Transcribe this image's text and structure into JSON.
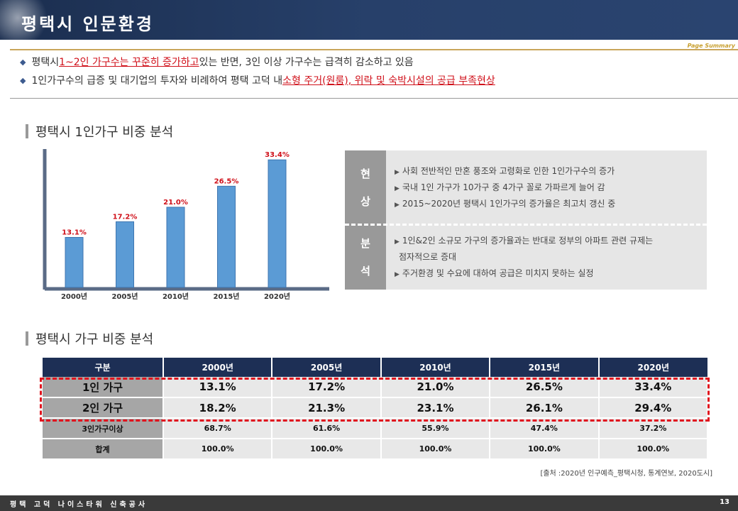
{
  "header": {
    "title": "평택시 인문환경",
    "page_summary": "Page Summary"
  },
  "summary": {
    "line1": {
      "pre": "평택시 ",
      "highlight": "1~2인 가구수는 꾸준히 증가하고",
      "post": " 있는 반면, 3인 이상 가구수는 급격히 감소하고 있음"
    },
    "line2": {
      "pre": "1인가구수의 급증 및 대기업의 투자와 비례하여 평택 고덕 내 ",
      "highlight": "소형 주거(원룸), 위락 및 숙박시설의 공급 부족현상",
      "post": ""
    }
  },
  "section1_title": "평택시 1인가구 비중 분석",
  "chart_data": {
    "type": "bar",
    "categories": [
      "2000년",
      "2005년",
      "2010년",
      "2015년",
      "2020년"
    ],
    "values": [
      13.1,
      17.2,
      21.0,
      26.5,
      33.4
    ],
    "data_labels": [
      "13.1%",
      "17.2%",
      "21.0%",
      "26.5%",
      "33.4%"
    ],
    "ylim": [
      0,
      34
    ],
    "bar_color": "#5b9bd5",
    "label_color": "#d0101a",
    "grid": false
  },
  "analysis": {
    "now_label": [
      "현",
      "상"
    ],
    "now_lines": [
      "사회 전반적인 만혼 풍조와 고령화로 인한 1인가구수의 증가",
      "국내 1인 가구가 10가구 중 4가구 꼴로 가파르게 늘어 감",
      "2015~2020년  평택시 1인가구의 증가율은 최고치 갱신 중"
    ],
    "analysis_label": [
      "분",
      "석"
    ],
    "analysis_lines": [
      "1인&2인 소규모 가구의 증가율과는 반대로 정부의 아파트 관련 규제는",
      "점자적으로 증대",
      "주거환경 및 수요에 대하여 공급은 미치지 못하는 실정"
    ]
  },
  "section2_title": "평택시 가구 비중 분석",
  "table": {
    "headers": [
      "구분",
      "2000년",
      "2005년",
      "2010년",
      "2015년",
      "2020년"
    ],
    "rows": [
      [
        "1인 가구",
        "13.1%",
        "17.2%",
        "21.0%",
        "26.5%",
        "33.4%"
      ],
      [
        "2인 가구",
        "18.2%",
        "21.3%",
        "23.1%",
        "26.1%",
        "29.4%"
      ],
      [
        "3인가구이상",
        "68.7%",
        "61.6%",
        "55.9%",
        "47.4%",
        "37.2%"
      ],
      [
        "합계",
        "100.0%",
        "100.0%",
        "100.0%",
        "100.0%",
        "100.0%"
      ]
    ]
  },
  "source": "[출처 :2020년 인구예측_평택시청, 통계연보, 2020도시]",
  "footer": {
    "text": "평택 고덕 나이스타워 신축공사",
    "page": "13"
  }
}
